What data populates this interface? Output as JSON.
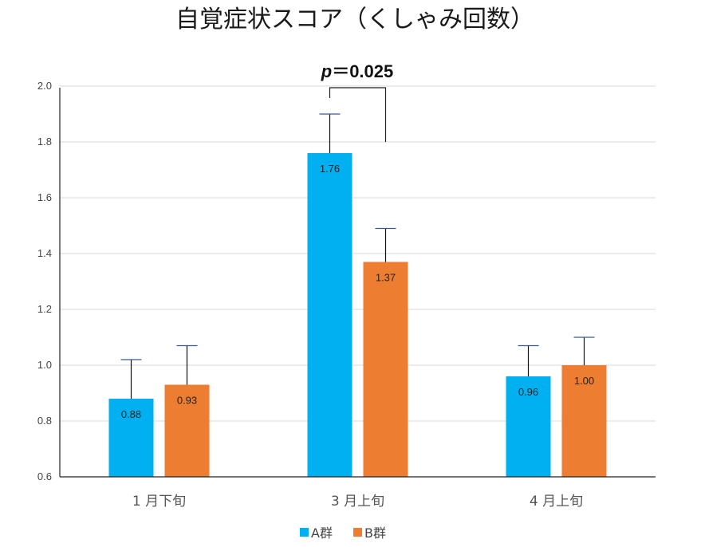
{
  "chart_data": {
    "type": "bar",
    "title": "自覚症状スコア（くしゃみ回数）",
    "categories": [
      "1 月下旬",
      "3 月上旬",
      "4 月上旬"
    ],
    "series": [
      {
        "name": "A群",
        "color": "#00b0f0",
        "values": [
          0.88,
          1.76,
          0.96
        ],
        "error_upper": [
          1.02,
          1.9,
          1.07
        ]
      },
      {
        "name": "B群",
        "color": "#ed7d31",
        "values": [
          0.93,
          1.37,
          1.0
        ],
        "error_upper": [
          1.07,
          1.49,
          1.1
        ]
      }
    ],
    "data_labels": [
      [
        "0.88",
        "1.76",
        "0.96"
      ],
      [
        "0.93",
        "1.37",
        "1.00"
      ]
    ],
    "ylim": [
      0.6,
      2.0
    ],
    "yticks": [
      "0.6",
      "0.8",
      "1.0",
      "1.2",
      "1.4",
      "1.6",
      "1.8",
      "2.0"
    ],
    "grid": true,
    "legend": "bottom",
    "annotation": {
      "p_label": "p",
      "p_value": "＝0.025",
      "category": "3 月上旬"
    }
  }
}
